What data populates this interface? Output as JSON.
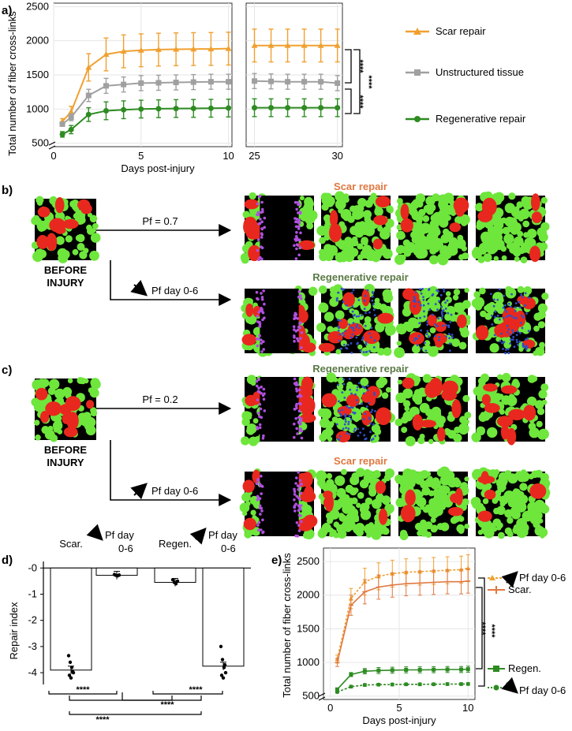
{
  "panel_labels": {
    "a": "a)",
    "b": "b)",
    "c": "c)",
    "d": "d)",
    "e": "e)"
  },
  "colors": {
    "scar": "#f0a030",
    "unstructured": "#a0a0a0",
    "regen": "#2e8b22",
    "title_orange": "#e07840",
    "title_green": "#5a7a45",
    "tissue_green": "#6ee63c",
    "tissue_red": "#e8281e",
    "tissue_purple": "#b050e0",
    "tissue_blue": "#3050c8"
  },
  "chart_data": [
    {
      "id": "a",
      "type": "line",
      "ylabel": "Total number of fiber cross-links",
      "xlabel": "Days post-injury",
      "ylim": [
        450,
        2550
      ],
      "yticks": [
        500,
        1000,
        1500,
        2000,
        2500
      ],
      "x_left": [
        0,
        10.2
      ],
      "x_right": [
        24.5,
        30.3
      ],
      "xticks_left": [
        0,
        5,
        10
      ],
      "xticks_right": [
        25,
        30
      ],
      "series": [
        {
          "name": "Scar repair",
          "marker": "triangle",
          "x": [
            0.5,
            1,
            2,
            3,
            4,
            5,
            6,
            7,
            8,
            9,
            10,
            25,
            26,
            27,
            28,
            29,
            30
          ],
          "y": [
            820,
            960,
            1610,
            1800,
            1845,
            1860,
            1870,
            1875,
            1878,
            1880,
            1885,
            1930,
            1930,
            1930,
            1930,
            1930,
            1930
          ],
          "err": [
            40,
            80,
            200,
            240,
            240,
            240,
            240,
            240,
            240,
            240,
            240,
            240,
            240,
            240,
            240,
            240,
            240
          ]
        },
        {
          "name": "Unstructured tissue",
          "marker": "square",
          "x": [
            0.5,
            1,
            2,
            3,
            4,
            5,
            6,
            7,
            8,
            9,
            10,
            25,
            26,
            27,
            28,
            29,
            30
          ],
          "y": [
            780,
            880,
            1200,
            1340,
            1360,
            1380,
            1385,
            1390,
            1395,
            1400,
            1400,
            1410,
            1405,
            1400,
            1400,
            1400,
            1380
          ],
          "err": [
            30,
            50,
            90,
            110,
            110,
            110,
            110,
            110,
            110,
            110,
            110,
            110,
            110,
            110,
            110,
            110,
            110
          ]
        },
        {
          "name": "Regenerative repair",
          "marker": "circle",
          "x": [
            0.5,
            1,
            2,
            3,
            4,
            5,
            6,
            7,
            8,
            9,
            10,
            25,
            26,
            27,
            28,
            29,
            30
          ],
          "y": [
            630,
            700,
            920,
            975,
            990,
            1000,
            1005,
            1008,
            1010,
            1012,
            1015,
            1020,
            1020,
            1020,
            1020,
            1020,
            1020
          ],
          "err": [
            40,
            60,
            100,
            130,
            130,
            130,
            130,
            130,
            130,
            130,
            130,
            130,
            130,
            130,
            130,
            130,
            130
          ]
        }
      ],
      "significance": [
        "****",
        "****",
        "****"
      ]
    },
    {
      "id": "d",
      "type": "bar",
      "ylabel": "Repair index",
      "categories": [
        "Scar.",
        "Pf day 0-6",
        "Regen.",
        "Pf day 0-6"
      ],
      "arrows": [
        "none",
        "down",
        "none",
        "up"
      ],
      "values": [
        -3.9,
        -0.28,
        -0.55,
        -3.75
      ],
      "points": [
        [
          -3.35,
          -3.6,
          -3.8,
          -4.0,
          -4.1,
          -4.2,
          -3.95
        ],
        [
          -0.25,
          -0.28,
          -0.3,
          -0.27
        ],
        [
          -0.45,
          -0.55,
          -0.6,
          -0.5
        ],
        [
          -3.0,
          -3.5,
          -3.8,
          -4.0,
          -4.1,
          -4.2,
          -3.7
        ]
      ],
      "ylim": [
        -4.45,
        0.25
      ],
      "yticks": [
        0,
        -1,
        -2,
        -3,
        -4
      ],
      "yticklabels": [
        "-0",
        "-1",
        "-2",
        "-3",
        "-4"
      ],
      "significance": [
        "****",
        "****",
        "****",
        "****"
      ]
    },
    {
      "id": "e",
      "type": "line",
      "ylabel": "Total number of fiber cross-links",
      "xlabel": "Days post-injury",
      "ylim": [
        450,
        2700
      ],
      "yticks": [
        500,
        1000,
        1500,
        2000,
        2500
      ],
      "xlim": [
        -0.5,
        10.5
      ],
      "xticks": [
        0,
        5,
        10
      ],
      "series": [
        {
          "name": "Pf day 0-6",
          "arrow": "up",
          "marker": "triangle",
          "dashed": true,
          "color": "scar",
          "x": [
            0.5,
            1.5,
            2.5,
            3.5,
            4.5,
            5.5,
            6.5,
            7.5,
            8.5,
            9.5,
            10
          ],
          "y": [
            1050,
            1950,
            2200,
            2280,
            2320,
            2340,
            2350,
            2360,
            2370,
            2380,
            2400
          ],
          "err": [
            60,
            150,
            200,
            200,
            200,
            200,
            200,
            200,
            200,
            200,
            200
          ]
        },
        {
          "name": "Scar.",
          "marker": "plus",
          "dashed": false,
          "color": "scar",
          "x": [
            0.5,
            1.5,
            2.5,
            3.5,
            4.5,
            5.5,
            6.5,
            7.5,
            8.5,
            9.5,
            10
          ],
          "y": [
            1000,
            1850,
            2050,
            2120,
            2150,
            2170,
            2180,
            2190,
            2200,
            2200,
            2210
          ],
          "err": [
            60,
            150,
            180,
            180,
            180,
            180,
            180,
            180,
            180,
            180,
            180
          ]
        },
        {
          "name": "Regen.",
          "marker": "square",
          "dashed": false,
          "color": "regen",
          "x": [
            0.5,
            1.5,
            2.5,
            3.5,
            4.5,
            5.5,
            6.5,
            7.5,
            8.5,
            9.5,
            10
          ],
          "y": [
            600,
            820,
            870,
            880,
            885,
            890,
            890,
            892,
            895,
            895,
            900
          ],
          "err": [
            20,
            30,
            40,
            45,
            45,
            45,
            45,
            45,
            45,
            45,
            45
          ]
        },
        {
          "name": "Pf day 0-6",
          "arrow": "down",
          "marker": "circle",
          "dashed": true,
          "color": "regen",
          "x": [
            0.5,
            1.5,
            2.5,
            3.5,
            4.5,
            5.5,
            6.5,
            7.5,
            8.5,
            9.5,
            10
          ],
          "y": [
            560,
            640,
            665,
            670,
            672,
            675,
            675,
            676,
            678,
            678,
            680
          ],
          "err": [
            15,
            20,
            20,
            20,
            20,
            20,
            20,
            20,
            20,
            20,
            20
          ]
        }
      ],
      "significance": [
        "****",
        "****"
      ]
    }
  ],
  "panel_b": {
    "arrow1_label": "Pf = 0.7",
    "arrow2_label": "Pf day 0-6",
    "arrow2_dir": "down",
    "title1": "Scar repair",
    "title2": "Regenerative repair",
    "before_line1": "BEFORE",
    "before_line2": "INJURY"
  },
  "panel_c": {
    "arrow1_label": "Pf = 0.2",
    "arrow2_label": "Pf day 0-6",
    "arrow2_dir": "up",
    "title1": "Regenerative repair",
    "title2": "Scar repair",
    "before_line1": "BEFORE",
    "before_line2": "INJURY"
  }
}
